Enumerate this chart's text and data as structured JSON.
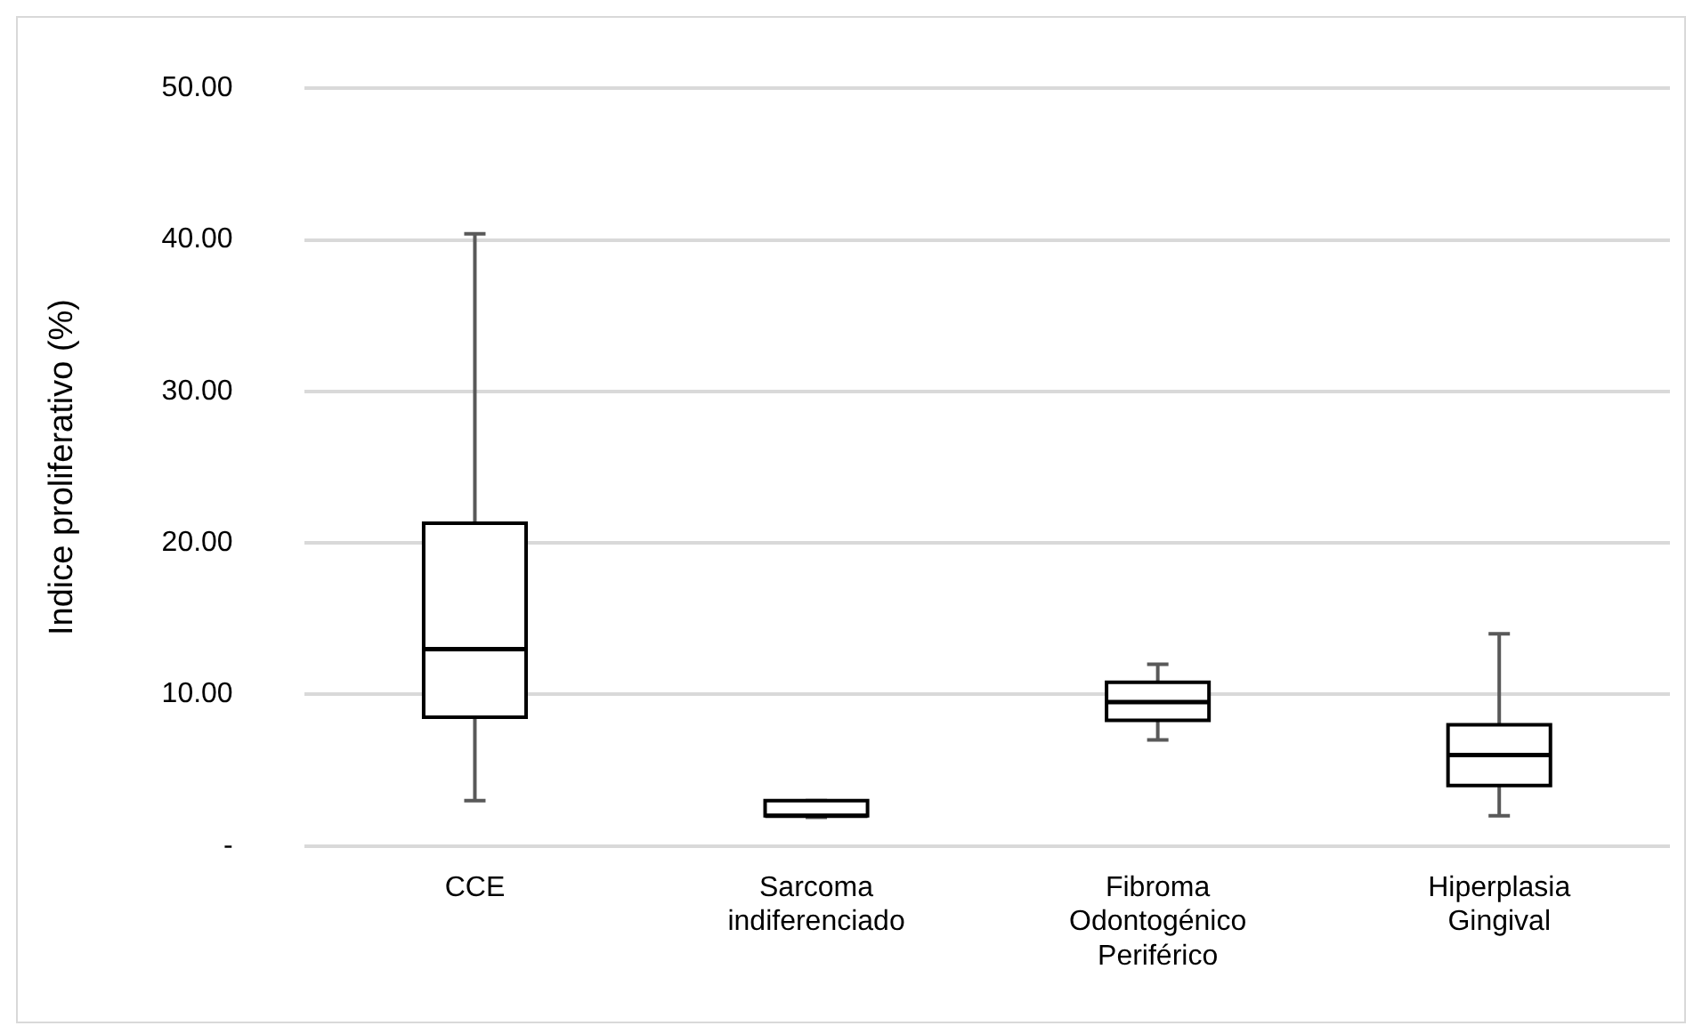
{
  "chart_data": {
    "type": "box",
    "ylabel": "Indice proliferativo (%)",
    "categories": [
      "CCE",
      "Sarcoma indiferenciado",
      "Fibroma Odontogénico Periférico",
      "Hiperplasia Gingival"
    ],
    "boxes": [
      {
        "low": 3.0,
        "q1": 8.5,
        "median": 13.0,
        "q3": 21.3,
        "high": 40.4
      },
      {
        "low": 1.9,
        "q1": 2.0,
        "median": 2.0,
        "q3": 3.0,
        "high": 3.0
      },
      {
        "low": 7.0,
        "q1": 8.3,
        "median": 9.5,
        "q3": 10.8,
        "high": 12.0
      },
      {
        "low": 2.0,
        "q1": 4.0,
        "median": 6.0,
        "q3": 8.0,
        "high": 14.0
      }
    ],
    "ylim": [
      0,
      50
    ],
    "yticks": [
      {
        "value": 0,
        "label": "-"
      },
      {
        "value": 10,
        "label": "10.00"
      },
      {
        "value": 20,
        "label": "20.00"
      },
      {
        "value": 30,
        "label": "30.00"
      },
      {
        "value": 40,
        "label": "40.00"
      },
      {
        "value": 50,
        "label": "50.00"
      }
    ],
    "grid": "y",
    "legend": false
  }
}
